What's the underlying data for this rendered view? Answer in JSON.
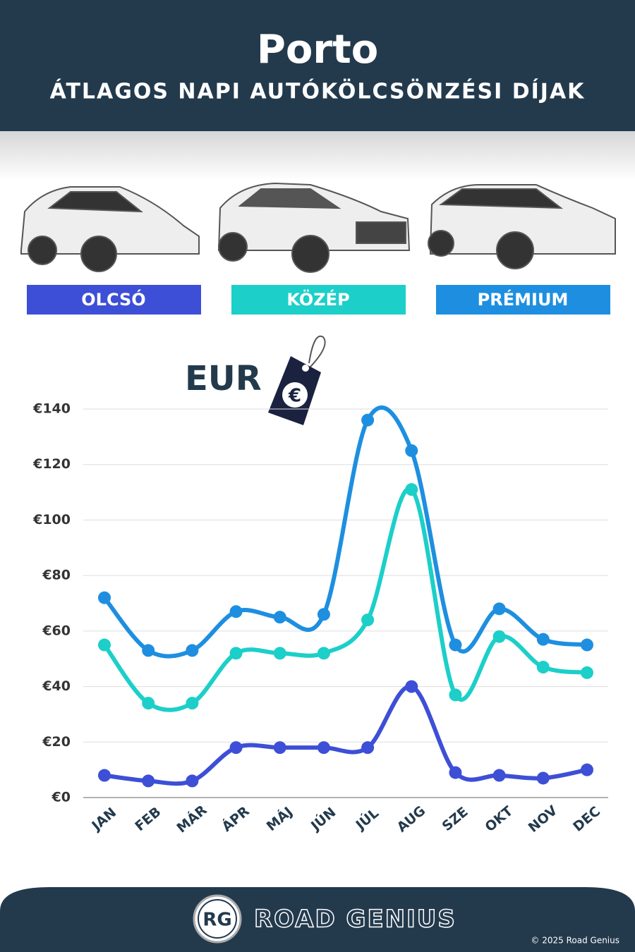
{
  "header": {
    "title": "Porto",
    "subtitle": "ÁTLAGOS NAPI AUTÓKÖLCSÖNZÉSI DÍJAK"
  },
  "chart_data": {
    "type": "line",
    "unit_label": "EUR",
    "tag_symbol": "€",
    "categories": [
      "JAN",
      "FEB",
      "MÁR",
      "ÁPR",
      "MÁJ",
      "JÚN",
      "JÚL",
      "AUG",
      "SZE",
      "OKT",
      "NOV",
      "DEC"
    ],
    "series": [
      {
        "name": "OLCSÓ",
        "color": "#3d4fd6",
        "values": [
          8,
          6,
          6,
          18,
          18,
          18,
          18,
          40,
          9,
          8,
          7,
          10
        ]
      },
      {
        "name": "KÖZÉP",
        "color": "#1ccfc9",
        "values": [
          55,
          34,
          34,
          52,
          52,
          52,
          64,
          111,
          37,
          58,
          47,
          45
        ]
      },
      {
        "name": "PRÉMIUM",
        "color": "#1e8fe0",
        "values": [
          72,
          53,
          53,
          67,
          65,
          66,
          136,
          125,
          55,
          68,
          57,
          55
        ]
      }
    ],
    "ylim": [
      0,
      140
    ],
    "yticks": [
      {
        "value": 0,
        "label": "€0"
      },
      {
        "value": 20,
        "label": "€20"
      },
      {
        "value": 40,
        "label": "€40"
      },
      {
        "value": 60,
        "label": "€60"
      },
      {
        "value": 80,
        "label": "€80"
      },
      {
        "value": 100,
        "label": "€100"
      },
      {
        "value": 120,
        "label": "€120"
      },
      {
        "value": 140,
        "label": "€140"
      }
    ],
    "grid": true
  },
  "footer": {
    "logo": "RG",
    "brand": "ROAD GENIUS",
    "copyright": "© 2025 Road Genius"
  }
}
